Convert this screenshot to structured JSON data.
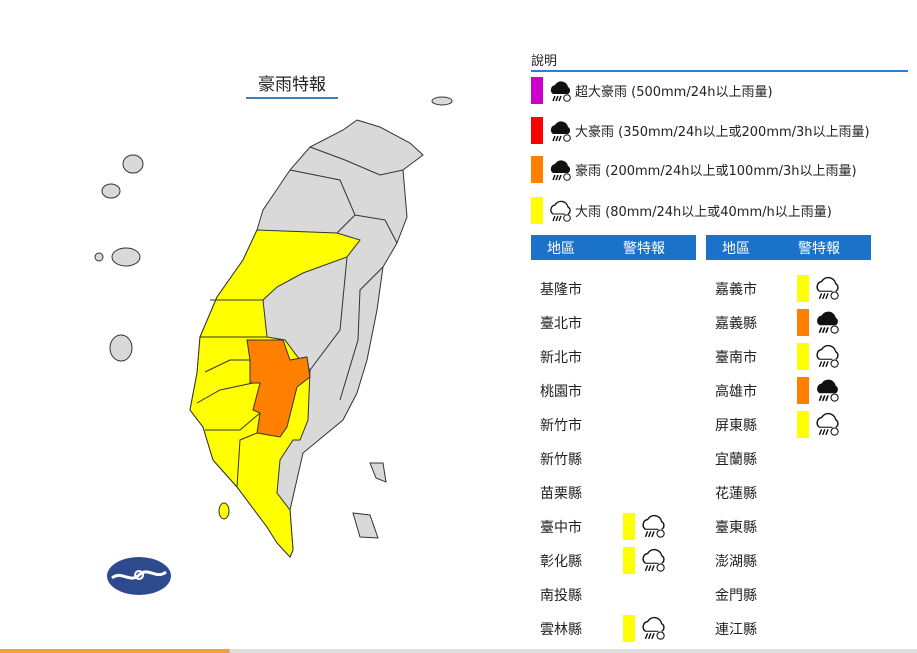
{
  "map": {
    "title": "豪雨特報",
    "colors": {
      "land": "#d9d9d9",
      "yellow": "#ffff00",
      "orange": "#ff8000",
      "border": "#333333"
    },
    "logo": "cwa-logo"
  },
  "legend": {
    "title": "說明",
    "items": [
      {
        "color": "#cc00cc",
        "icon": "extreme-torrential-rain-icon",
        "label": "超大豪雨 (500mm/24h以上雨量)"
      },
      {
        "color": "#ff0000",
        "icon": "torrential-rain-icon",
        "label": "大豪雨 (350mm/24h以上或200mm/3h以上雨量)"
      },
      {
        "color": "#ff8000",
        "icon": "extremely-heavy-rain-icon",
        "label": "豪雨 (200mm/24h以上或100mm/3h以上雨量)"
      },
      {
        "color": "#ffff00",
        "icon": "heavy-rain-icon",
        "label": "大雨 (80mm/24h以上或40mm/h以上雨量)"
      }
    ]
  },
  "table": {
    "headers": {
      "region": "地區",
      "warning": "警特報"
    },
    "left": [
      {
        "region": "基隆市",
        "level": ""
      },
      {
        "region": "臺北市",
        "level": ""
      },
      {
        "region": "新北市",
        "level": ""
      },
      {
        "region": "桃園市",
        "level": ""
      },
      {
        "region": "新竹市",
        "level": ""
      },
      {
        "region": "新竹縣",
        "level": ""
      },
      {
        "region": "苗栗縣",
        "level": ""
      },
      {
        "region": "臺中市",
        "level": "大雨"
      },
      {
        "region": "彰化縣",
        "level": "大雨"
      },
      {
        "region": "南投縣",
        "level": ""
      },
      {
        "region": "雲林縣",
        "level": "大雨"
      }
    ],
    "right": [
      {
        "region": "嘉義市",
        "level": "大雨"
      },
      {
        "region": "嘉義縣",
        "level": "豪雨"
      },
      {
        "region": "臺南市",
        "level": "大雨"
      },
      {
        "region": "高雄市",
        "level": "豪雨"
      },
      {
        "region": "屏東縣",
        "level": "大雨"
      },
      {
        "region": "宜蘭縣",
        "level": ""
      },
      {
        "region": "花蓮縣",
        "level": ""
      },
      {
        "region": "臺東縣",
        "level": ""
      },
      {
        "region": "澎湖縣",
        "level": ""
      },
      {
        "region": "金門縣",
        "level": ""
      },
      {
        "region": "連江縣",
        "level": ""
      }
    ]
  }
}
